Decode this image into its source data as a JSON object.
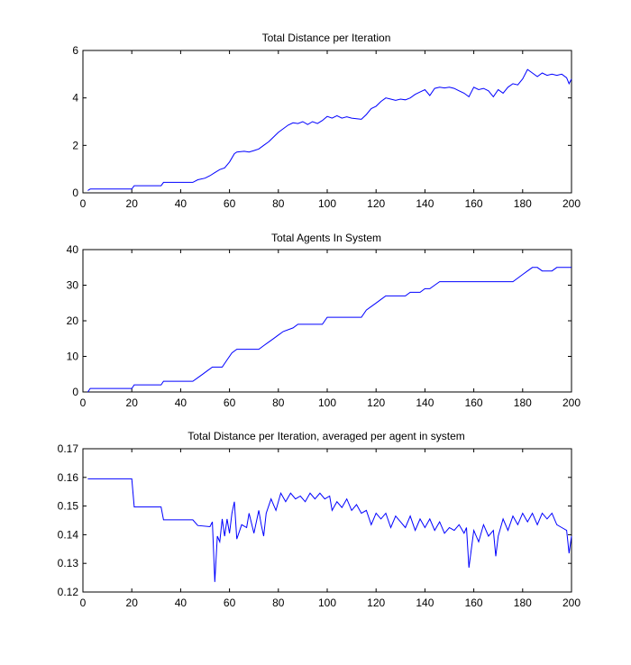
{
  "chart_data": [
    {
      "type": "line",
      "title": "Total Distance per Iteration",
      "xlabel": "",
      "ylabel": "",
      "xlim": [
        0,
        200
      ],
      "ylim": [
        0,
        6
      ],
      "xticks": [
        0,
        20,
        40,
        60,
        80,
        100,
        120,
        140,
        160,
        180,
        200
      ],
      "yticks": [
        0,
        2,
        4,
        6
      ],
      "grid": false,
      "series": [
        {
          "color": "#0000ff",
          "x": [
            2,
            3,
            20,
            21,
            32,
            33,
            45,
            47,
            50,
            52,
            54,
            56,
            58,
            60,
            62,
            63,
            66,
            68,
            70,
            72,
            74,
            76,
            78,
            80,
            82,
            84,
            86,
            88,
            90,
            92,
            94,
            96,
            98,
            100,
            102,
            104,
            106,
            108,
            110,
            112,
            114,
            116,
            118,
            120,
            122,
            124,
            126,
            128,
            130,
            132,
            134,
            136,
            138,
            140,
            142,
            144,
            146,
            148,
            150,
            152,
            154,
            156,
            158,
            160,
            162,
            164,
            166,
            168,
            170,
            172,
            174,
            176,
            178,
            180,
            182,
            184,
            186,
            188,
            190,
            192,
            194,
            196,
            198,
            199,
            200
          ],
          "y": [
            0.1,
            0.16,
            0.16,
            0.3,
            0.3,
            0.44,
            0.44,
            0.55,
            0.62,
            0.72,
            0.85,
            0.98,
            1.05,
            1.3,
            1.65,
            1.72,
            1.75,
            1.72,
            1.78,
            1.85,
            2.0,
            2.15,
            2.35,
            2.55,
            2.7,
            2.85,
            2.95,
            2.92,
            3.0,
            2.88,
            3.0,
            2.92,
            3.05,
            3.22,
            3.15,
            3.25,
            3.15,
            3.2,
            3.15,
            3.12,
            3.1,
            3.3,
            3.55,
            3.65,
            3.85,
            4.0,
            3.95,
            3.9,
            3.95,
            3.92,
            4.0,
            4.15,
            4.25,
            4.35,
            4.1,
            4.4,
            4.45,
            4.42,
            4.45,
            4.4,
            4.3,
            4.2,
            4.05,
            4.45,
            4.35,
            4.4,
            4.3,
            4.05,
            4.35,
            4.2,
            4.45,
            4.6,
            4.55,
            4.8,
            5.2,
            5.05,
            4.9,
            5.05,
            4.95,
            5.0,
            4.95,
            5.0,
            4.85,
            4.6,
            4.8
          ]
        }
      ]
    },
    {
      "type": "line",
      "title": "Total Agents In System",
      "xlabel": "",
      "ylabel": "",
      "xlim": [
        0,
        200
      ],
      "ylim": [
        0,
        40
      ],
      "xticks": [
        0,
        20,
        40,
        60,
        80,
        100,
        120,
        140,
        160,
        180,
        200
      ],
      "yticks": [
        0,
        10,
        20,
        30,
        40
      ],
      "grid": false,
      "series": [
        {
          "color": "#0000ff",
          "x": [
            2,
            3,
            20,
            21,
            32,
            33,
            45,
            47,
            49,
            51,
            53,
            57,
            59,
            61,
            63,
            72,
            74,
            76,
            78,
            80,
            82,
            86,
            88,
            98,
            100,
            114,
            116,
            118,
            120,
            122,
            124,
            132,
            134,
            138,
            140,
            142,
            144,
            146,
            176,
            178,
            180,
            182,
            184,
            186,
            188,
            192,
            194,
            200
          ],
          "y": [
            0,
            1,
            1,
            2,
            2,
            3,
            3,
            4,
            5,
            6,
            7,
            7,
            9,
            11,
            12,
            12,
            13,
            14,
            15,
            16,
            17,
            18,
            19,
            19,
            21,
            21,
            23,
            24,
            25,
            26,
            27,
            27,
            28,
            28,
            29,
            29,
            30,
            31,
            31,
            32,
            33,
            34,
            35,
            35,
            34,
            34,
            35,
            35
          ]
        }
      ]
    },
    {
      "type": "line",
      "title": "Total Distance per Iteration, averaged per agent in system",
      "xlabel": "",
      "ylabel": "",
      "xlim": [
        0,
        200
      ],
      "ylim": [
        0.12,
        0.17
      ],
      "xticks": [
        0,
        20,
        40,
        60,
        80,
        100,
        120,
        140,
        160,
        180,
        200
      ],
      "yticks": [
        0.12,
        0.13,
        0.14,
        0.15,
        0.16,
        0.17
      ],
      "grid": false,
      "series": [
        {
          "color": "#0000ff",
          "x": [
            2,
            20,
            21,
            32,
            33,
            45,
            47,
            52,
            53,
            54,
            55,
            56,
            57,
            58,
            59,
            60,
            61,
            62,
            63,
            65,
            67,
            68,
            70,
            72,
            73,
            74,
            75,
            77,
            79,
            81,
            83,
            85,
            87,
            89,
            91,
            93,
            95,
            97,
            99,
            101,
            102,
            104,
            106,
            108,
            110,
            112,
            114,
            116,
            118,
            120,
            122,
            124,
            126,
            128,
            130,
            132,
            134,
            136,
            138,
            140,
            142,
            144,
            146,
            148,
            150,
            152,
            154,
            156,
            157,
            158,
            160,
            162,
            164,
            166,
            168,
            169,
            170,
            172,
            174,
            176,
            178,
            180,
            182,
            184,
            186,
            188,
            190,
            192,
            194,
            196,
            198,
            199,
            200
          ],
          "y": [
            0.1595,
            0.1595,
            0.1497,
            0.1497,
            0.1452,
            0.1452,
            0.1432,
            0.1428,
            0.1445,
            0.1235,
            0.1395,
            0.1375,
            0.1455,
            0.1395,
            0.1455,
            0.1405,
            0.1475,
            0.1515,
            0.1385,
            0.1435,
            0.1425,
            0.1475,
            0.1405,
            0.1485,
            0.1435,
            0.1395,
            0.1475,
            0.1525,
            0.1485,
            0.1545,
            0.1515,
            0.1545,
            0.1525,
            0.1535,
            0.1515,
            0.1545,
            0.1525,
            0.1545,
            0.1525,
            0.1535,
            0.1485,
            0.1515,
            0.1495,
            0.1525,
            0.1485,
            0.1505,
            0.1475,
            0.1485,
            0.1435,
            0.1475,
            0.1455,
            0.1475,
            0.1425,
            0.1465,
            0.1445,
            0.1425,
            0.1465,
            0.1415,
            0.1455,
            0.1425,
            0.1455,
            0.1415,
            0.1445,
            0.1405,
            0.1425,
            0.1415,
            0.1435,
            0.1405,
            0.1425,
            0.1285,
            0.1415,
            0.1375,
            0.1435,
            0.1395,
            0.1415,
            0.1325,
            0.1395,
            0.1455,
            0.1415,
            0.1465,
            0.1435,
            0.1475,
            0.1445,
            0.1475,
            0.1435,
            0.1475,
            0.1455,
            0.1475,
            0.1435,
            0.1425,
            0.1415,
            0.1335,
            0.1395
          ]
        }
      ]
    }
  ]
}
